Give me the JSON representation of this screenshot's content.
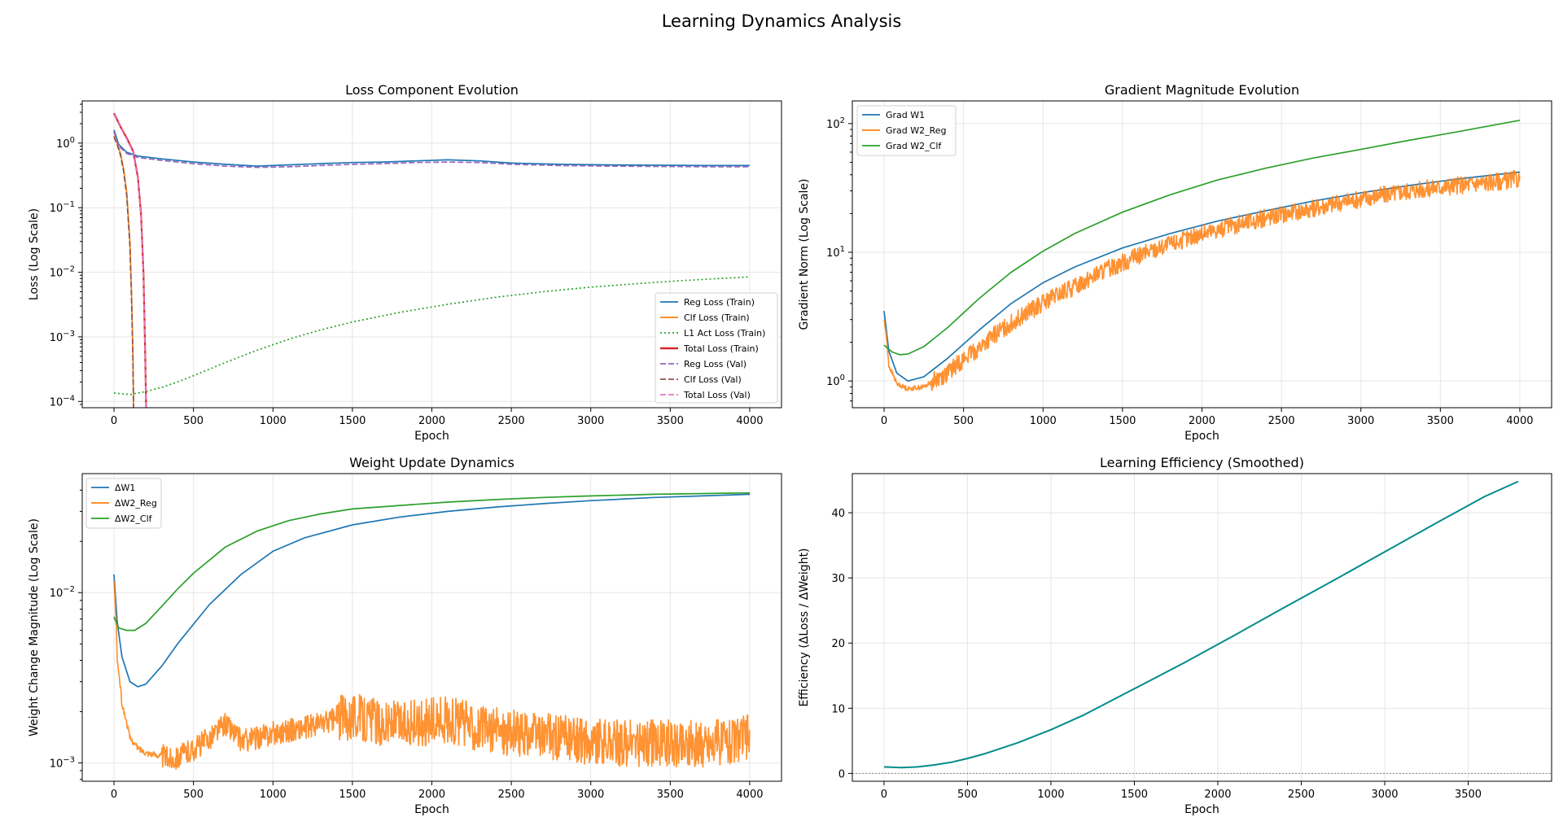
{
  "suptitle": "Learning Dynamics Analysis",
  "chart_data": [
    {
      "type": "line",
      "title": "Loss Component Evolution",
      "xlabel": "Epoch",
      "ylabel": "Loss (Log Scale)",
      "yscale": "log",
      "xlim": [
        -200,
        4200
      ],
      "ylim": [
        8e-05,
        4.5
      ],
      "xticks": [
        0,
        500,
        1000,
        1500,
        2000,
        2500,
        3000,
        3500,
        4000
      ],
      "yticks": [
        {
          "v": 0.0001,
          "label": "10^-4"
        },
        {
          "v": 0.001,
          "label": "10^-3"
        },
        {
          "v": 0.01,
          "label": "10^-2"
        },
        {
          "v": 0.1,
          "label": "10^-1"
        },
        {
          "v": 1,
          "label": "10^0"
        }
      ],
      "grid": true,
      "legend": "lower right",
      "series": [
        {
          "name": "Reg Loss (Train)",
          "color": "#1f77b4",
          "style": "solid",
          "x": [
            0,
            30,
            80,
            150,
            300,
            500,
            700,
            900,
            1100,
            1300,
            1500,
            1700,
            1900,
            2100,
            2300,
            2500,
            2800,
            3100,
            3400,
            3700,
            4000
          ],
          "y": [
            1.6,
            0.95,
            0.72,
            0.63,
            0.57,
            0.51,
            0.47,
            0.44,
            0.46,
            0.48,
            0.5,
            0.51,
            0.53,
            0.55,
            0.53,
            0.49,
            0.47,
            0.46,
            0.455,
            0.45,
            0.45
          ]
        },
        {
          "name": "Clf Loss (Train)",
          "color": "#ff7f0e",
          "style": "solid",
          "x": [
            0,
            20,
            40,
            60,
            80,
            100,
            110,
            118,
            123
          ],
          "y": [
            1.3,
            1.0,
            0.7,
            0.4,
            0.17,
            0.03,
            0.005,
            0.0007,
            8e-05
          ]
        },
        {
          "name": "L1 Act Loss (Train)",
          "color": "#2ca02c",
          "style": "dotted",
          "x": [
            0,
            100,
            200,
            300,
            400,
            500,
            700,
            900,
            1100,
            1300,
            1500,
            1800,
            2100,
            2400,
            2700,
            3000,
            3300,
            3600,
            4000
          ],
          "y": [
            0.000135,
            0.000128,
            0.000142,
            0.000165,
            0.0002,
            0.00025,
            0.0004,
            0.00062,
            0.00092,
            0.00128,
            0.0017,
            0.0024,
            0.0032,
            0.0041,
            0.005,
            0.0059,
            0.0067,
            0.0075,
            0.0085
          ]
        },
        {
          "name": "Total Loss (Train)",
          "color": "#d62728",
          "style": "solid",
          "x": [
            0,
            40,
            80,
            120,
            150,
            170,
            185,
            195,
            202
          ],
          "y": [
            2.9,
            1.8,
            1.2,
            0.75,
            0.3,
            0.08,
            0.01,
            0.0008,
            8e-05
          ]
        },
        {
          "name": "Reg Loss (Val)",
          "color": "#9467bd",
          "style": "dashed",
          "x": [
            0,
            30,
            80,
            150,
            300,
            500,
            700,
            900,
            1100,
            1300,
            1500,
            1700,
            1900,
            2100,
            2300,
            2500,
            2800,
            3100,
            3400,
            3700,
            4000
          ],
          "y": [
            1.5,
            0.9,
            0.69,
            0.6,
            0.54,
            0.48,
            0.44,
            0.42,
            0.43,
            0.45,
            0.47,
            0.48,
            0.5,
            0.51,
            0.5,
            0.47,
            0.45,
            0.44,
            0.435,
            0.43,
            0.43
          ]
        },
        {
          "name": "Clf Loss (Val)",
          "color": "#8c564b",
          "style": "dashed",
          "x": [
            0,
            20,
            40,
            60,
            80,
            100,
            110,
            118,
            123
          ],
          "y": [
            1.25,
            0.95,
            0.66,
            0.37,
            0.15,
            0.025,
            0.004,
            0.0006,
            8e-05
          ]
        },
        {
          "name": "Total Loss (Val)",
          "color": "#e377c2",
          "style": "dashed",
          "x": [
            0,
            40,
            80,
            120,
            150,
            170,
            185,
            195,
            202
          ],
          "y": [
            2.8,
            1.75,
            1.15,
            0.72,
            0.28,
            0.07,
            0.009,
            0.0007,
            8e-05
          ]
        }
      ]
    },
    {
      "type": "line",
      "title": "Gradient Magnitude Evolution",
      "xlabel": "Epoch",
      "ylabel": "Gradient Norm (Log Scale)",
      "yscale": "log",
      "xlim": [
        -200,
        4200
      ],
      "ylim": [
        0.62,
        150
      ],
      "xticks": [
        0,
        500,
        1000,
        1500,
        2000,
        2500,
        3000,
        3500,
        4000
      ],
      "yticks": [
        {
          "v": 1,
          "label": "10^0"
        },
        {
          "v": 10,
          "label": "10^1"
        },
        {
          "v": 100,
          "label": "10^2"
        }
      ],
      "grid": true,
      "legend": "upper left",
      "series": [
        {
          "name": "Grad W1",
          "color": "#1f77b4",
          "style": "solid",
          "x": [
            0,
            30,
            80,
            150,
            250,
            400,
            600,
            800,
            1000,
            1200,
            1500,
            1800,
            2100,
            2400,
            2700,
            3000,
            3300,
            3600,
            4000
          ],
          "y": [
            3.5,
            1.7,
            1.15,
            1.0,
            1.08,
            1.5,
            2.5,
            4.0,
            5.8,
            7.7,
            10.8,
            14.0,
            17.5,
            21.0,
            25.0,
            29.0,
            33.0,
            37.0,
            42.0
          ]
        },
        {
          "name": "Grad W2_Reg",
          "color": "#ff7f0e",
          "style": "solid",
          "noisy": true,
          "x": [
            0,
            30,
            80,
            150,
            250,
            400,
            600,
            800,
            1000,
            1200,
            1500,
            1800,
            2100,
            2400,
            2700,
            3000,
            3300,
            3600,
            4000
          ],
          "y": [
            3.0,
            1.3,
            0.95,
            0.87,
            0.9,
            1.15,
            1.8,
            2.8,
            4.0,
            5.4,
            8.3,
            11.5,
            15.0,
            18.5,
            22.0,
            26.0,
            30.0,
            33.0,
            37.0
          ]
        },
        {
          "name": "Grad W2_Clf",
          "color": "#2ca02c",
          "style": "solid",
          "x": [
            0,
            50,
            100,
            150,
            250,
            400,
            600,
            800,
            1000,
            1200,
            1500,
            1800,
            2100,
            2400,
            2700,
            3000,
            3300,
            3600,
            4000
          ],
          "y": [
            1.9,
            1.68,
            1.6,
            1.62,
            1.85,
            2.6,
            4.4,
            7.0,
            10.2,
            14.0,
            20.5,
            28.0,
            36.5,
            45.0,
            54.0,
            63.0,
            74.0,
            86.0,
            106.0
          ]
        }
      ]
    },
    {
      "type": "line",
      "title": "Weight Update Dynamics",
      "xlabel": "Epoch",
      "ylabel": "Weight Change Magnitude (Log Scale)",
      "yscale": "log",
      "xlim": [
        -200,
        4200
      ],
      "ylim": [
        0.00078,
        0.05
      ],
      "xticks": [
        0,
        500,
        1000,
        1500,
        2000,
        2500,
        3000,
        3500,
        4000
      ],
      "yticks": [
        {
          "v": 0.001,
          "label": "10^-3"
        },
        {
          "v": 0.01,
          "label": "10^-2"
        }
      ],
      "grid": true,
      "legend": "upper left",
      "series": [
        {
          "name": "ΔW1",
          "color": "#1f77b4",
          "style": "solid",
          "x": [
            0,
            20,
            50,
            100,
            150,
            200,
            300,
            400,
            600,
            800,
            1000,
            1200,
            1500,
            1800,
            2100,
            2400,
            2700,
            3000,
            3400,
            3700,
            4000
          ],
          "y": [
            0.0128,
            0.0068,
            0.0042,
            0.003,
            0.0028,
            0.0029,
            0.0037,
            0.005,
            0.0085,
            0.0128,
            0.0175,
            0.021,
            0.025,
            0.0278,
            0.03,
            0.0318,
            0.0333,
            0.0347,
            0.0362,
            0.037,
            0.0378
          ]
        },
        {
          "name": "ΔW2_Reg",
          "color": "#ff7f0e",
          "style": "solid",
          "noisy": true,
          "x": [
            0,
            20,
            50,
            100,
            150,
            200,
            250,
            300,
            350,
            400,
            500,
            600,
            700,
            800,
            900,
            1000,
            1200,
            1400,
            1500,
            1700,
            1900,
            2100,
            2300,
            2500,
            2800,
            3100,
            3400,
            3700,
            4000
          ],
          "y": [
            0.0115,
            0.004,
            0.0022,
            0.0014,
            0.00122,
            0.00115,
            0.00112,
            0.0011,
            0.00106,
            0.00108,
            0.0012,
            0.0014,
            0.0017,
            0.00135,
            0.0014,
            0.0015,
            0.0016,
            0.0018,
            0.0019,
            0.0017,
            0.0017,
            0.0018,
            0.0016,
            0.0015,
            0.0014,
            0.0013,
            0.0013,
            0.0013,
            0.0014
          ]
        },
        {
          "name": "ΔW2_Clf",
          "color": "#2ca02c",
          "style": "solid",
          "x": [
            0,
            30,
            80,
            130,
            200,
            300,
            400,
            500,
            700,
            900,
            1100,
            1300,
            1500,
            1800,
            2100,
            2400,
            2700,
            3000,
            3400,
            3700,
            4000
          ],
          "y": [
            0.0072,
            0.0062,
            0.006,
            0.006,
            0.0066,
            0.0083,
            0.0105,
            0.013,
            0.0185,
            0.023,
            0.0265,
            0.029,
            0.031,
            0.0325,
            0.034,
            0.0352,
            0.0362,
            0.037,
            0.0378,
            0.0382,
            0.0385
          ]
        }
      ]
    },
    {
      "type": "line",
      "title": "Learning Efficiency (Smoothed)",
      "xlabel": "Epoch",
      "ylabel": "Efficiency (ΔLoss / ΔWeight)",
      "yscale": "linear",
      "xlim": [
        -190,
        4000
      ],
      "ylim": [
        -1.2,
        46.0
      ],
      "xticks": [
        0,
        500,
        1000,
        1500,
        2000,
        2500,
        3000,
        3500
      ],
      "yticks": [
        {
          "v": 0,
          "label": "0"
        },
        {
          "v": 10,
          "label": "10"
        },
        {
          "v": 20,
          "label": "20"
        },
        {
          "v": 30,
          "label": "30"
        },
        {
          "v": 40,
          "label": "40"
        }
      ],
      "grid": true,
      "hline": 0,
      "series": [
        {
          "name": "",
          "color": "#008b8b",
          "style": "solid",
          "x": [
            0,
            100,
            200,
            300,
            400,
            500,
            600,
            800,
            1000,
            1200,
            1500,
            1800,
            2100,
            2400,
            2700,
            3000,
            3300,
            3600,
            3800
          ],
          "y": [
            1.0,
            0.9,
            1.0,
            1.3,
            1.7,
            2.3,
            3.0,
            4.7,
            6.7,
            9.0,
            13.0,
            17.0,
            21.2,
            25.5,
            29.7,
            34.0,
            38.3,
            42.5,
            44.8
          ]
        }
      ]
    }
  ]
}
